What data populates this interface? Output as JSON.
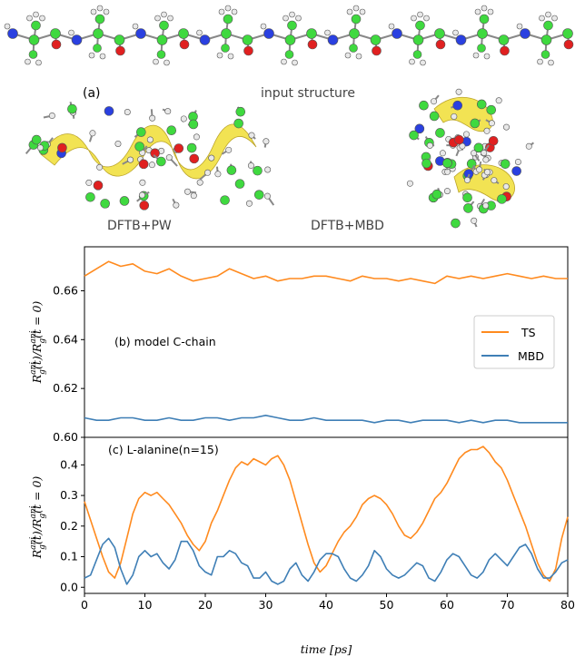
{
  "top": {
    "panel_tag": "(a)",
    "input_label": "input structure",
    "left_label": "DFTB+PW",
    "right_label": "DFTB+MBD"
  },
  "colors": {
    "carbon": "#3fd93f",
    "oxygen": "#e02020",
    "nitrogen": "#2a40e0",
    "hydrogen": "#e8e8e8",
    "helix": "#f2e24a",
    "ts": "#ff8a1e",
    "mbd": "#3f7fb6"
  },
  "chart_data": [
    {
      "type": "line",
      "annotation": "(b) model C-chain",
      "ylabel_html": "R_g^ani(t)/R_g^ani(t=0)",
      "ylim": [
        0.6,
        0.678
      ],
      "yticks": [
        0.6,
        0.62,
        0.64,
        0.66
      ],
      "ytick_labels": [
        "0.60",
        "0.62",
        "0.64",
        "0.66"
      ],
      "xlim": [
        0,
        80
      ],
      "legend": {
        "position": "center-right",
        "entries": [
          "TS",
          "MBD"
        ]
      },
      "series": [
        {
          "name": "TS",
          "color": "#ff8a1e",
          "x": [
            0,
            2,
            4,
            6,
            8,
            10,
            12,
            14,
            16,
            18,
            20,
            22,
            24,
            26,
            28,
            30,
            32,
            34,
            36,
            38,
            40,
            42,
            44,
            46,
            48,
            50,
            52,
            54,
            56,
            58,
            60,
            62,
            64,
            66,
            68,
            70,
            72,
            74,
            76,
            78,
            80
          ],
          "y": [
            0.666,
            0.669,
            0.672,
            0.67,
            0.671,
            0.668,
            0.667,
            0.669,
            0.666,
            0.664,
            0.665,
            0.666,
            0.669,
            0.667,
            0.665,
            0.666,
            0.664,
            0.665,
            0.665,
            0.666,
            0.666,
            0.665,
            0.664,
            0.666,
            0.665,
            0.665,
            0.664,
            0.665,
            0.664,
            0.663,
            0.666,
            0.665,
            0.666,
            0.665,
            0.666,
            0.667,
            0.666,
            0.665,
            0.666,
            0.665,
            0.665
          ]
        },
        {
          "name": "MBD",
          "color": "#3f7fb6",
          "x": [
            0,
            2,
            4,
            6,
            8,
            10,
            12,
            14,
            16,
            18,
            20,
            22,
            24,
            26,
            28,
            30,
            32,
            34,
            36,
            38,
            40,
            42,
            44,
            46,
            48,
            50,
            52,
            54,
            56,
            58,
            60,
            62,
            64,
            66,
            68,
            70,
            72,
            74,
            76,
            78,
            80
          ],
          "y": [
            0.608,
            0.607,
            0.607,
            0.608,
            0.608,
            0.607,
            0.607,
            0.608,
            0.607,
            0.607,
            0.608,
            0.608,
            0.607,
            0.608,
            0.608,
            0.609,
            0.608,
            0.607,
            0.607,
            0.608,
            0.607,
            0.607,
            0.607,
            0.607,
            0.606,
            0.607,
            0.607,
            0.606,
            0.607,
            0.607,
            0.607,
            0.606,
            0.607,
            0.606,
            0.607,
            0.607,
            0.606,
            0.606,
            0.606,
            0.606,
            0.606
          ]
        }
      ]
    },
    {
      "type": "line",
      "annotation": "(c) L-alanine(n=15)",
      "ylabel_html": "R_g^ani(t)/R_g^ani(t=0)",
      "ylim": [
        -0.02,
        0.49
      ],
      "yticks": [
        0.0,
        0.1,
        0.2,
        0.3,
        0.4
      ],
      "ytick_labels": [
        "0.0",
        "0.1",
        "0.2",
        "0.3",
        "0.4"
      ],
      "xlim": [
        0,
        80
      ],
      "xticks": [
        0,
        10,
        20,
        30,
        40,
        50,
        60,
        70,
        80
      ],
      "xtick_labels": [
        "0",
        "10",
        "20",
        "30",
        "40",
        "50",
        "60",
        "70",
        "80"
      ],
      "xlabel": "time [ps]",
      "series": [
        {
          "name": "TS",
          "color": "#ff8a1e",
          "x": [
            0,
            1,
            2,
            3,
            4,
            5,
            6,
            7,
            8,
            9,
            10,
            11,
            12,
            13,
            14,
            15,
            16,
            17,
            18,
            19,
            20,
            21,
            22,
            23,
            24,
            25,
            26,
            27,
            28,
            29,
            30,
            31,
            32,
            33,
            34,
            35,
            36,
            37,
            38,
            39,
            40,
            41,
            42,
            43,
            44,
            45,
            46,
            47,
            48,
            49,
            50,
            51,
            52,
            53,
            54,
            55,
            56,
            57,
            58,
            59,
            60,
            61,
            62,
            63,
            64,
            65,
            66,
            67,
            68,
            69,
            70,
            71,
            72,
            73,
            74,
            75,
            76,
            77,
            78,
            79,
            80
          ],
          "y": [
            0.28,
            0.22,
            0.16,
            0.1,
            0.05,
            0.03,
            0.08,
            0.16,
            0.24,
            0.29,
            0.31,
            0.3,
            0.31,
            0.29,
            0.27,
            0.24,
            0.21,
            0.17,
            0.14,
            0.12,
            0.15,
            0.21,
            0.25,
            0.3,
            0.35,
            0.39,
            0.41,
            0.4,
            0.42,
            0.41,
            0.4,
            0.42,
            0.43,
            0.4,
            0.35,
            0.28,
            0.21,
            0.14,
            0.08,
            0.05,
            0.07,
            0.11,
            0.15,
            0.18,
            0.2,
            0.23,
            0.27,
            0.29,
            0.3,
            0.29,
            0.27,
            0.24,
            0.2,
            0.17,
            0.16,
            0.18,
            0.21,
            0.25,
            0.29,
            0.31,
            0.34,
            0.38,
            0.42,
            0.44,
            0.45,
            0.45,
            0.46,
            0.44,
            0.41,
            0.39,
            0.35,
            0.3,
            0.25,
            0.2,
            0.14,
            0.08,
            0.04,
            0.02,
            0.06,
            0.16,
            0.23
          ]
        },
        {
          "name": "MBD",
          "color": "#3f7fb6",
          "x": [
            0,
            1,
            2,
            3,
            4,
            5,
            6,
            7,
            8,
            9,
            10,
            11,
            12,
            13,
            14,
            15,
            16,
            17,
            18,
            19,
            20,
            21,
            22,
            23,
            24,
            25,
            26,
            27,
            28,
            29,
            30,
            31,
            32,
            33,
            34,
            35,
            36,
            37,
            38,
            39,
            40,
            41,
            42,
            43,
            44,
            45,
            46,
            47,
            48,
            49,
            50,
            51,
            52,
            53,
            54,
            55,
            56,
            57,
            58,
            59,
            60,
            61,
            62,
            63,
            64,
            65,
            66,
            67,
            68,
            69,
            70,
            71,
            72,
            73,
            74,
            75,
            76,
            77,
            78,
            79,
            80
          ],
          "y": [
            0.03,
            0.04,
            0.09,
            0.14,
            0.16,
            0.13,
            0.06,
            0.01,
            0.04,
            0.1,
            0.12,
            0.1,
            0.11,
            0.08,
            0.06,
            0.09,
            0.15,
            0.15,
            0.12,
            0.07,
            0.05,
            0.04,
            0.1,
            0.1,
            0.12,
            0.11,
            0.08,
            0.07,
            0.03,
            0.03,
            0.05,
            0.02,
            0.01,
            0.02,
            0.06,
            0.08,
            0.04,
            0.02,
            0.05,
            0.09,
            0.11,
            0.11,
            0.1,
            0.06,
            0.03,
            0.02,
            0.04,
            0.07,
            0.12,
            0.1,
            0.06,
            0.04,
            0.03,
            0.04,
            0.06,
            0.08,
            0.07,
            0.03,
            0.02,
            0.05,
            0.09,
            0.11,
            0.1,
            0.07,
            0.04,
            0.03,
            0.05,
            0.09,
            0.11,
            0.09,
            0.07,
            0.1,
            0.13,
            0.14,
            0.11,
            0.06,
            0.03,
            0.03,
            0.05,
            0.08,
            0.09
          ]
        }
      ]
    }
  ]
}
